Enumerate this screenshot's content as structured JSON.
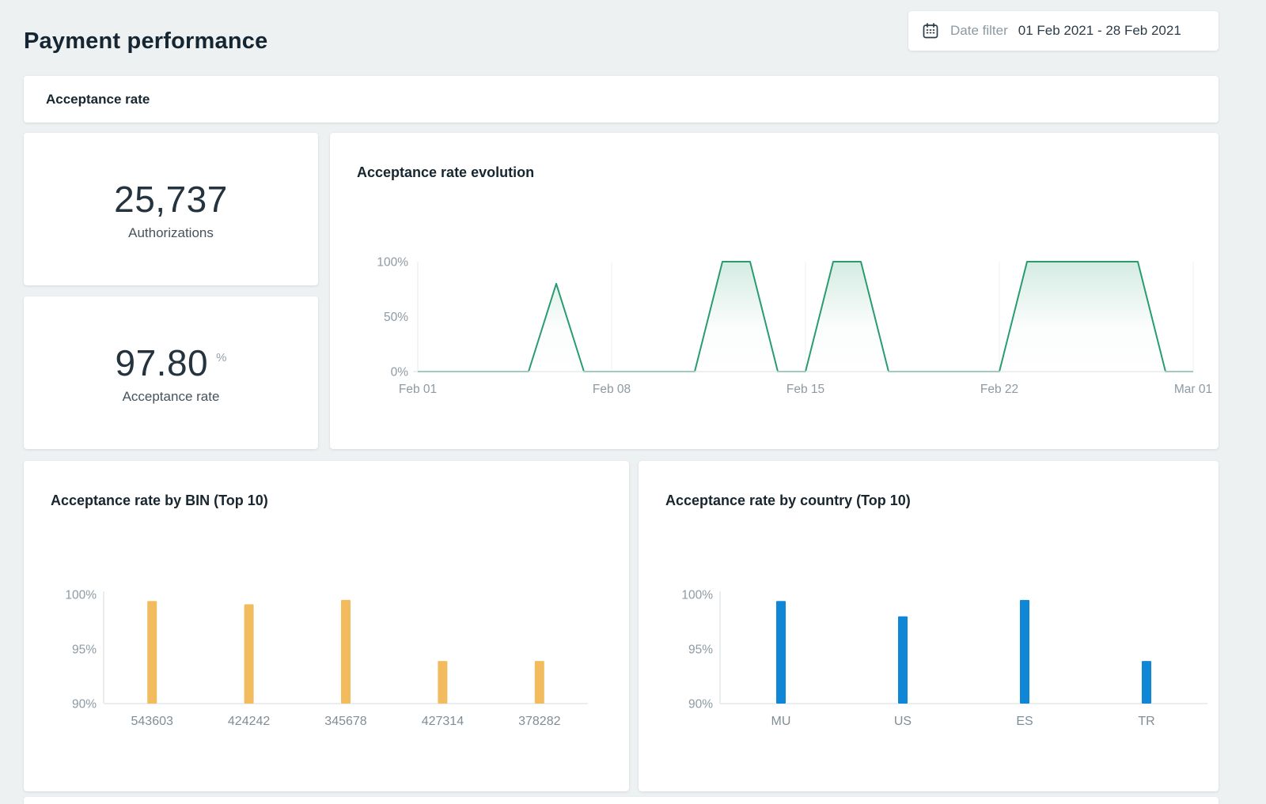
{
  "page": {
    "title": "Payment performance"
  },
  "date_filter": {
    "label": "Date filter",
    "value": "01 Feb 2021 - 28 Feb 2021",
    "icon": "calendar-icon"
  },
  "section": {
    "title": "Acceptance rate"
  },
  "stats": [
    {
      "value": "25,737",
      "label": "Authorizations"
    },
    {
      "value": "97.80",
      "unit": "%",
      "label": "Acceptance rate"
    }
  ],
  "colors": {
    "background": "#edf1f1",
    "card": "#ffffff",
    "heading": "#152531",
    "muted_text": "#8b99a3",
    "axis_line": "#e3e8ea",
    "axis_label": "#8d9aa3",
    "evolution_line": "#299c6f",
    "bin_bar": "#f2bc5e",
    "country_bar": "#0f86d6"
  },
  "chart_data": [
    {
      "id": "evolution",
      "type": "area",
      "title": "Acceptance rate evolution",
      "x": [
        "Feb 01",
        "Feb 02",
        "Feb 03",
        "Feb 04",
        "Feb 05",
        "Feb 06",
        "Feb 07",
        "Feb 08",
        "Feb 09",
        "Feb 10",
        "Feb 11",
        "Feb 12",
        "Feb 13",
        "Feb 14",
        "Feb 15",
        "Feb 16",
        "Feb 17",
        "Feb 18",
        "Feb 19",
        "Feb 20",
        "Feb 21",
        "Feb 22",
        "Feb 23",
        "Feb 24",
        "Feb 25",
        "Feb 26",
        "Feb 27",
        "Feb 28",
        "Mar 01"
      ],
      "values": [
        0,
        0,
        0,
        0,
        0,
        80,
        0,
        0,
        0,
        0,
        0,
        100,
        100,
        0,
        0,
        100,
        100,
        0,
        0,
        0,
        0,
        0,
        100,
        100,
        100,
        100,
        100,
        0,
        0
      ],
      "ylim": [
        0,
        100
      ],
      "ytick_values": [
        100,
        50,
        0
      ],
      "ytick_labels": [
        "100%",
        "50%",
        "0%"
      ],
      "x_tick_days": [
        0,
        7,
        14,
        21,
        28
      ],
      "x_tick_labels": [
        "Feb 01",
        "Feb 08",
        "Feb 15",
        "Feb 22",
        "Mar 01"
      ],
      "grid": "vertical-weekly",
      "legend": "none",
      "line_color": "#299c6f"
    },
    {
      "id": "bin",
      "type": "bar",
      "title": "Acceptance rate by BIN (Top 10)",
      "categories": [
        "543603",
        "424242",
        "345678",
        "427314",
        "378282"
      ],
      "values": [
        99.4,
        99.1,
        99.5,
        93.9,
        93.9
      ],
      "ylim": [
        90,
        100
      ],
      "ytick_values": [
        100,
        95,
        90
      ],
      "ytick_labels": [
        "100%",
        "95%",
        "90%"
      ],
      "legend": "none",
      "bar_color": "#f2bc5e"
    },
    {
      "id": "country",
      "type": "bar",
      "title": "Acceptance rate by country (Top 10)",
      "categories": [
        "MU",
        "US",
        "ES",
        "TR"
      ],
      "values": [
        99.4,
        98.0,
        99.5,
        93.9
      ],
      "ylim": [
        90,
        100
      ],
      "ytick_values": [
        100,
        95,
        90
      ],
      "ytick_labels": [
        "100%",
        "95%",
        "90%"
      ],
      "legend": "none",
      "bar_color": "#0f86d6"
    }
  ]
}
